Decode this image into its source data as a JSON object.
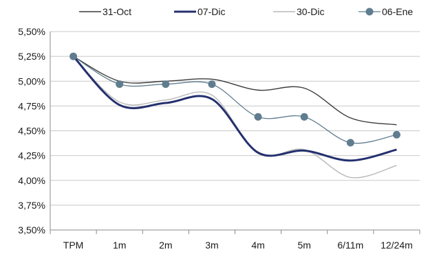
{
  "chart_data": {
    "type": "line",
    "title": "",
    "xlabel": "",
    "ylabel": "",
    "categories": [
      "TPM",
      "1m",
      "2m",
      "3m",
      "4m",
      "5m",
      "6/11m",
      "12/24m"
    ],
    "y_ticks": [
      "3,50%",
      "3,75%",
      "4,00%",
      "4,25%",
      "4,50%",
      "4,75%",
      "5,00%",
      "5,25%",
      "5,50%"
    ],
    "ylim": [
      3.5,
      5.5
    ],
    "grid": true,
    "legend_position": "top",
    "series": [
      {
        "name": "31-Oct",
        "color": "#3a3a3a",
        "style": "thin-dark",
        "values": [
          5.25,
          5.0,
          5.0,
          5.02,
          4.91,
          4.93,
          4.63,
          4.56
        ]
      },
      {
        "name": "07-Dic",
        "color": "#24306e",
        "style": "thick",
        "values": [
          5.25,
          4.76,
          4.78,
          4.82,
          4.28,
          4.3,
          4.2,
          4.31
        ]
      },
      {
        "name": "30-Dic",
        "color": "#b8b8b8",
        "style": "thin-light",
        "values": [
          5.25,
          4.79,
          4.81,
          4.86,
          4.27,
          4.31,
          4.03,
          4.15
        ]
      },
      {
        "name": "06-Ene",
        "color": "#5f7d8e",
        "style": "marker",
        "values": [
          5.25,
          4.97,
          4.97,
          4.97,
          4.64,
          4.64,
          4.38,
          4.46
        ]
      }
    ]
  }
}
